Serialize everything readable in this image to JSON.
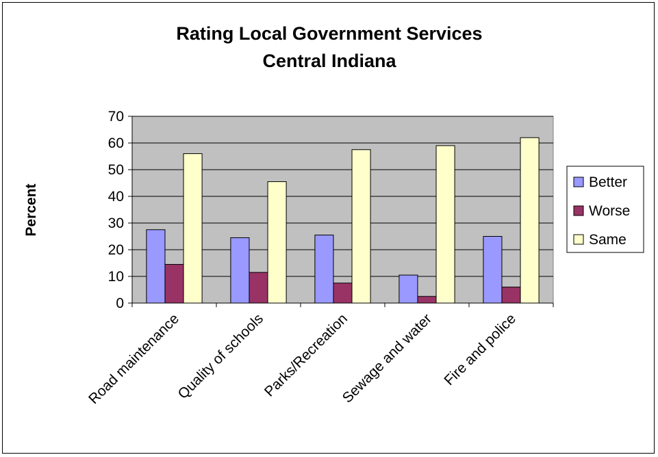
{
  "chart_data": {
    "type": "bar",
    "title": [
      "Rating Local Government Services",
      "Central Indiana"
    ],
    "xlabel": "",
    "ylabel": "Percent",
    "ylim": [
      0,
      70
    ],
    "yticks": [
      0,
      10,
      20,
      30,
      40,
      50,
      60,
      70
    ],
    "grid": true,
    "legend_position": "right",
    "categories": [
      "Road maintenance",
      "Quality of schools",
      "Parks/Recreation",
      "Sewage and water",
      "Fire and police"
    ],
    "series": [
      {
        "name": "Better",
        "color": "#9999ff",
        "values": [
          27.5,
          24.5,
          25.5,
          10.5,
          25
        ]
      },
      {
        "name": "Worse",
        "color": "#993366",
        "values": [
          14.5,
          11.5,
          7.5,
          2.5,
          6
        ]
      },
      {
        "name": "Same",
        "color": "#ffffcc",
        "values": [
          56,
          45.5,
          57.5,
          59,
          62
        ]
      }
    ],
    "plot_background": "#c0c0c0"
  }
}
